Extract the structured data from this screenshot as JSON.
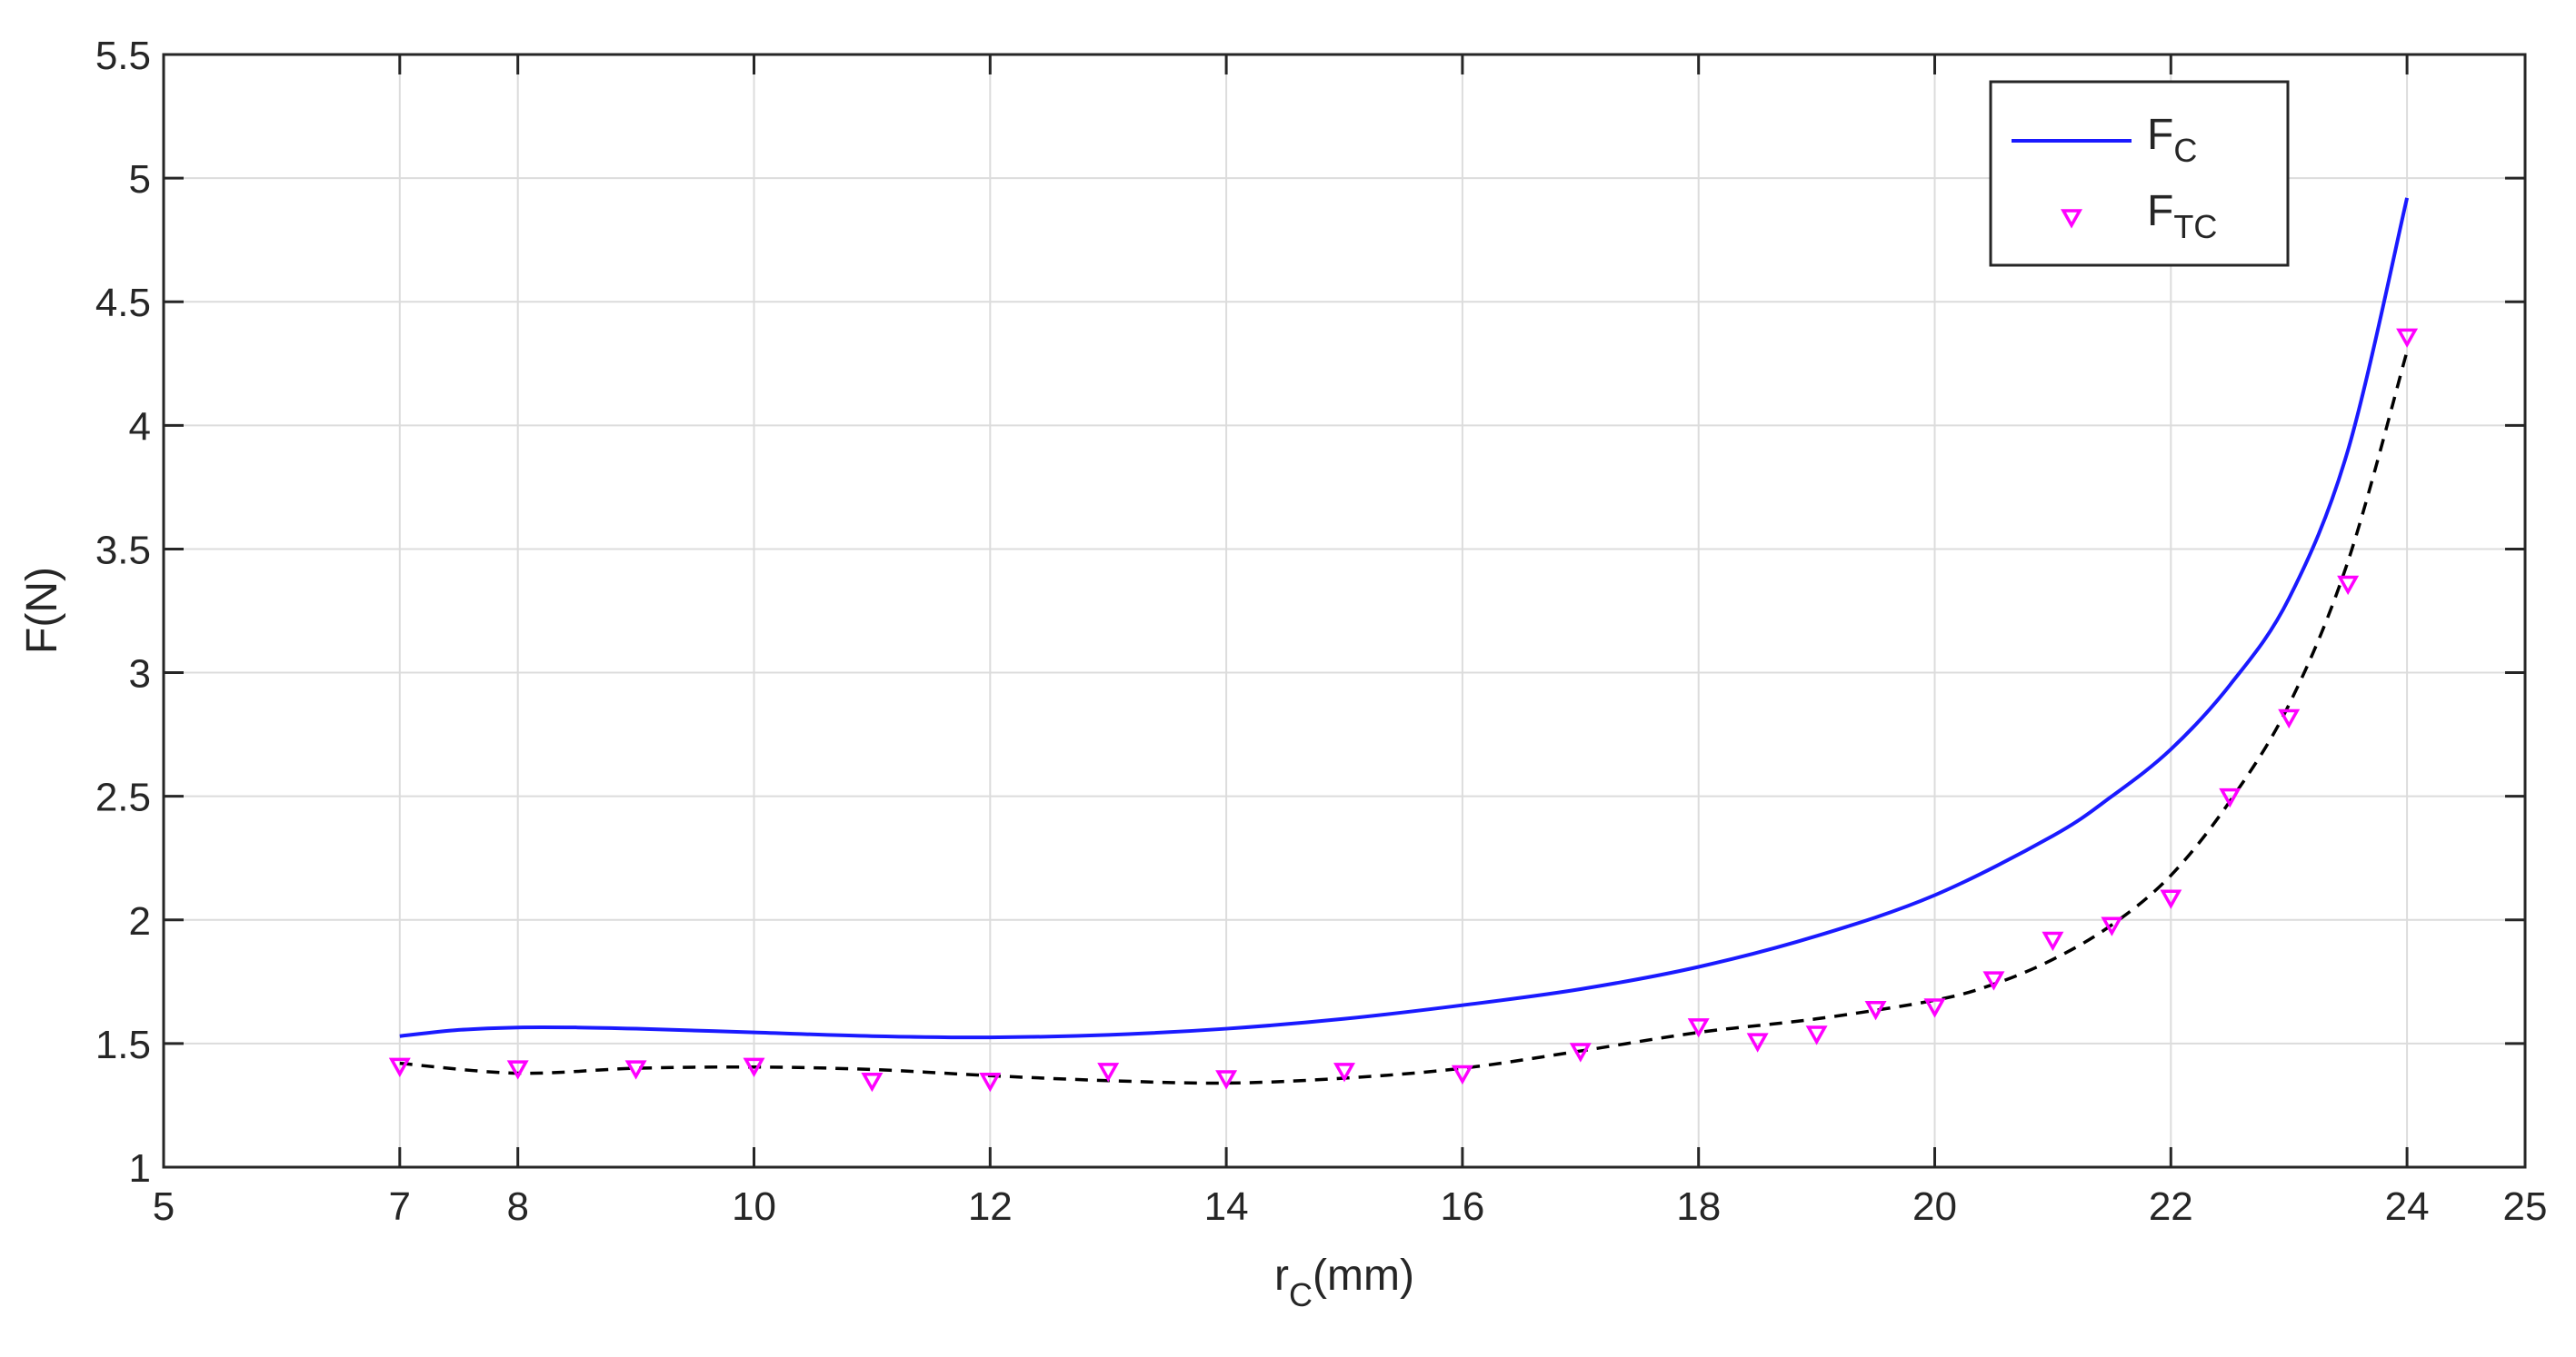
{
  "chart_data": {
    "type": "line",
    "title": "",
    "xlabel": {
      "main": "r",
      "sub": "C",
      "unit": "(mm)"
    },
    "ylabel": "F(N)",
    "xlim": [
      5,
      25
    ],
    "ylim": [
      1,
      5.5
    ],
    "grid": true,
    "legend_position": "top-right",
    "x_ticks": [
      5,
      7,
      8,
      10,
      12,
      14,
      16,
      18,
      20,
      22,
      24,
      25
    ],
    "y_ticks": [
      1,
      1.5,
      2,
      2.5,
      3,
      3.5,
      4,
      4.5,
      5,
      5.5
    ],
    "x_tick_labels": [
      "5",
      "7",
      "8",
      "10",
      "12",
      "14",
      "16",
      "18",
      "20",
      "22",
      "24",
      "25"
    ],
    "y_tick_labels": [
      "1",
      "1.5",
      "2",
      "2.5",
      "3",
      "3.5",
      "4",
      "4.5",
      "5",
      "5.5"
    ],
    "series": [
      {
        "legend_main": "F",
        "legend_sub": "C",
        "style": "solid-line",
        "color": "#1a1aff",
        "x": [
          7,
          7.5,
          8,
          8.5,
          9,
          10,
          11,
          12,
          13,
          14,
          15,
          16,
          17,
          18,
          19,
          20,
          21,
          21.5,
          22,
          22.5,
          23,
          23.5,
          24
        ],
        "y": [
          1.53,
          1.555,
          1.565,
          1.565,
          1.56,
          1.545,
          1.53,
          1.525,
          1.535,
          1.56,
          1.6,
          1.655,
          1.72,
          1.81,
          1.935,
          2.1,
          2.34,
          2.5,
          2.69,
          2.95,
          3.3,
          3.9,
          4.92
        ]
      },
      {
        "legend_main": "F",
        "legend_sub": "TC",
        "style": "triangle-down-markers",
        "color": "#ff00ff",
        "x": [
          7,
          8,
          9,
          10,
          11,
          12,
          13,
          14,
          15,
          16,
          17,
          18,
          18.5,
          19,
          19.5,
          20,
          20.5,
          21,
          21.5,
          22,
          22.5,
          23,
          23.5,
          24
        ],
        "y": [
          1.41,
          1.4,
          1.4,
          1.41,
          1.35,
          1.35,
          1.39,
          1.36,
          1.39,
          1.38,
          1.47,
          1.57,
          1.51,
          1.54,
          1.64,
          1.65,
          1.76,
          1.92,
          1.98,
          2.09,
          2.5,
          2.82,
          3.36,
          4.36
        ]
      },
      {
        "style": "dashed-fit",
        "color": "#000000",
        "x": [
          7,
          8,
          9,
          10,
          11,
          12,
          13,
          14,
          15,
          16,
          17,
          18,
          19,
          20,
          20.5,
          21,
          21.5,
          22,
          22.5,
          23,
          23.5,
          24
        ],
        "y": [
          1.42,
          1.38,
          1.4,
          1.405,
          1.395,
          1.37,
          1.35,
          1.34,
          1.36,
          1.4,
          1.47,
          1.545,
          1.6,
          1.675,
          1.74,
          1.84,
          1.98,
          2.18,
          2.48,
          2.87,
          3.45,
          4.3
        ]
      }
    ]
  }
}
